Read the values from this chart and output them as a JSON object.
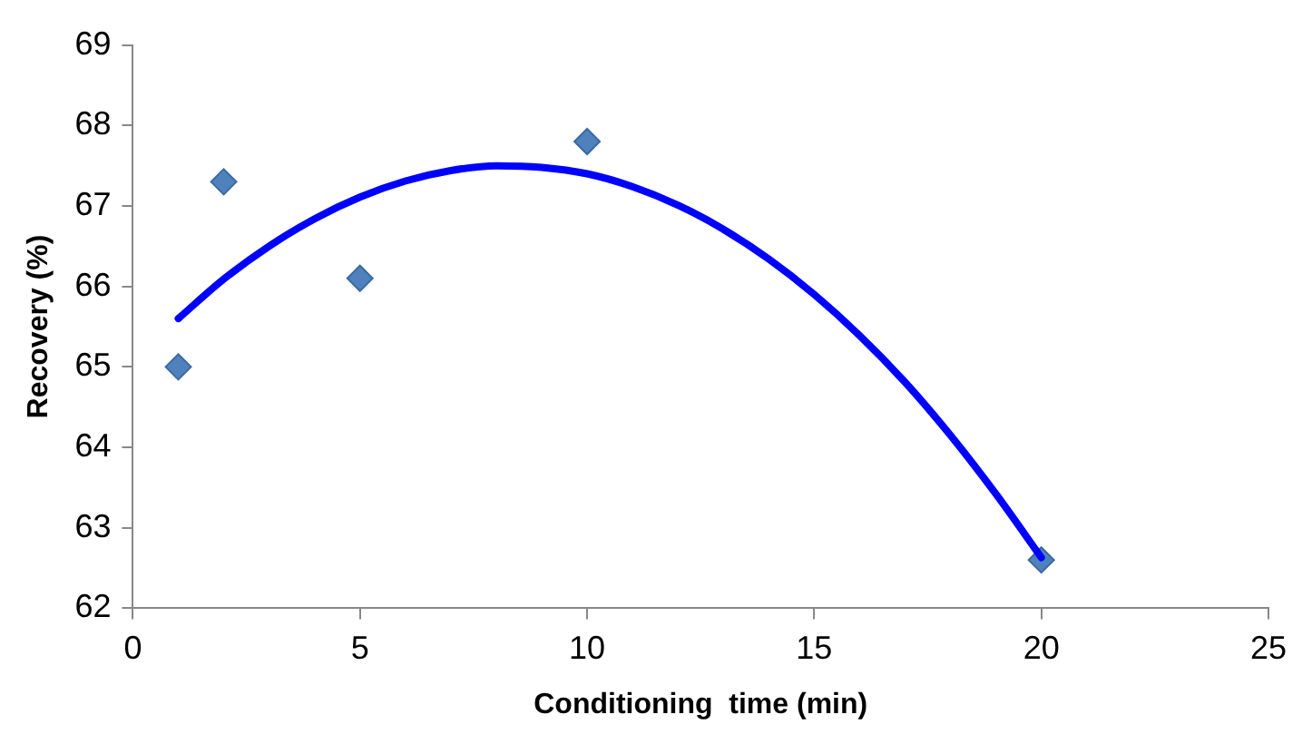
{
  "chart_data": {
    "type": "scatter",
    "xlabel": "Conditioning  time (min)",
    "ylabel": "Recovery (%)",
    "xlim": [
      0,
      25
    ],
    "xticks": [
      0,
      5,
      10,
      15,
      20,
      25
    ],
    "ylim": [
      62,
      69
    ],
    "yticks": [
      62,
      63,
      64,
      65,
      66,
      67,
      68,
      69
    ],
    "grid": false,
    "legend": false,
    "series": [
      {
        "marker": "diamond",
        "color": "#4f81bd",
        "x": [
          1,
          2,
          5,
          10,
          20
        ],
        "values": [
          65.0,
          67.3,
          66.1,
          67.8,
          62.6
        ]
      },
      {
        "type": "line",
        "marker": "none",
        "color": "#0000ff",
        "x": [
          1,
          2,
          3,
          4,
          5,
          6,
          7,
          8,
          9,
          10,
          11,
          12,
          13,
          14,
          15,
          16,
          17,
          18,
          19,
          20
        ],
        "values": [
          65.6,
          66.09,
          66.5,
          66.84,
          67.11,
          67.31,
          67.44,
          67.5,
          67.48,
          67.4,
          67.24,
          67.01,
          66.71,
          66.34,
          65.9,
          65.39,
          64.81,
          64.15,
          63.42,
          62.63
        ]
      }
    ]
  }
}
